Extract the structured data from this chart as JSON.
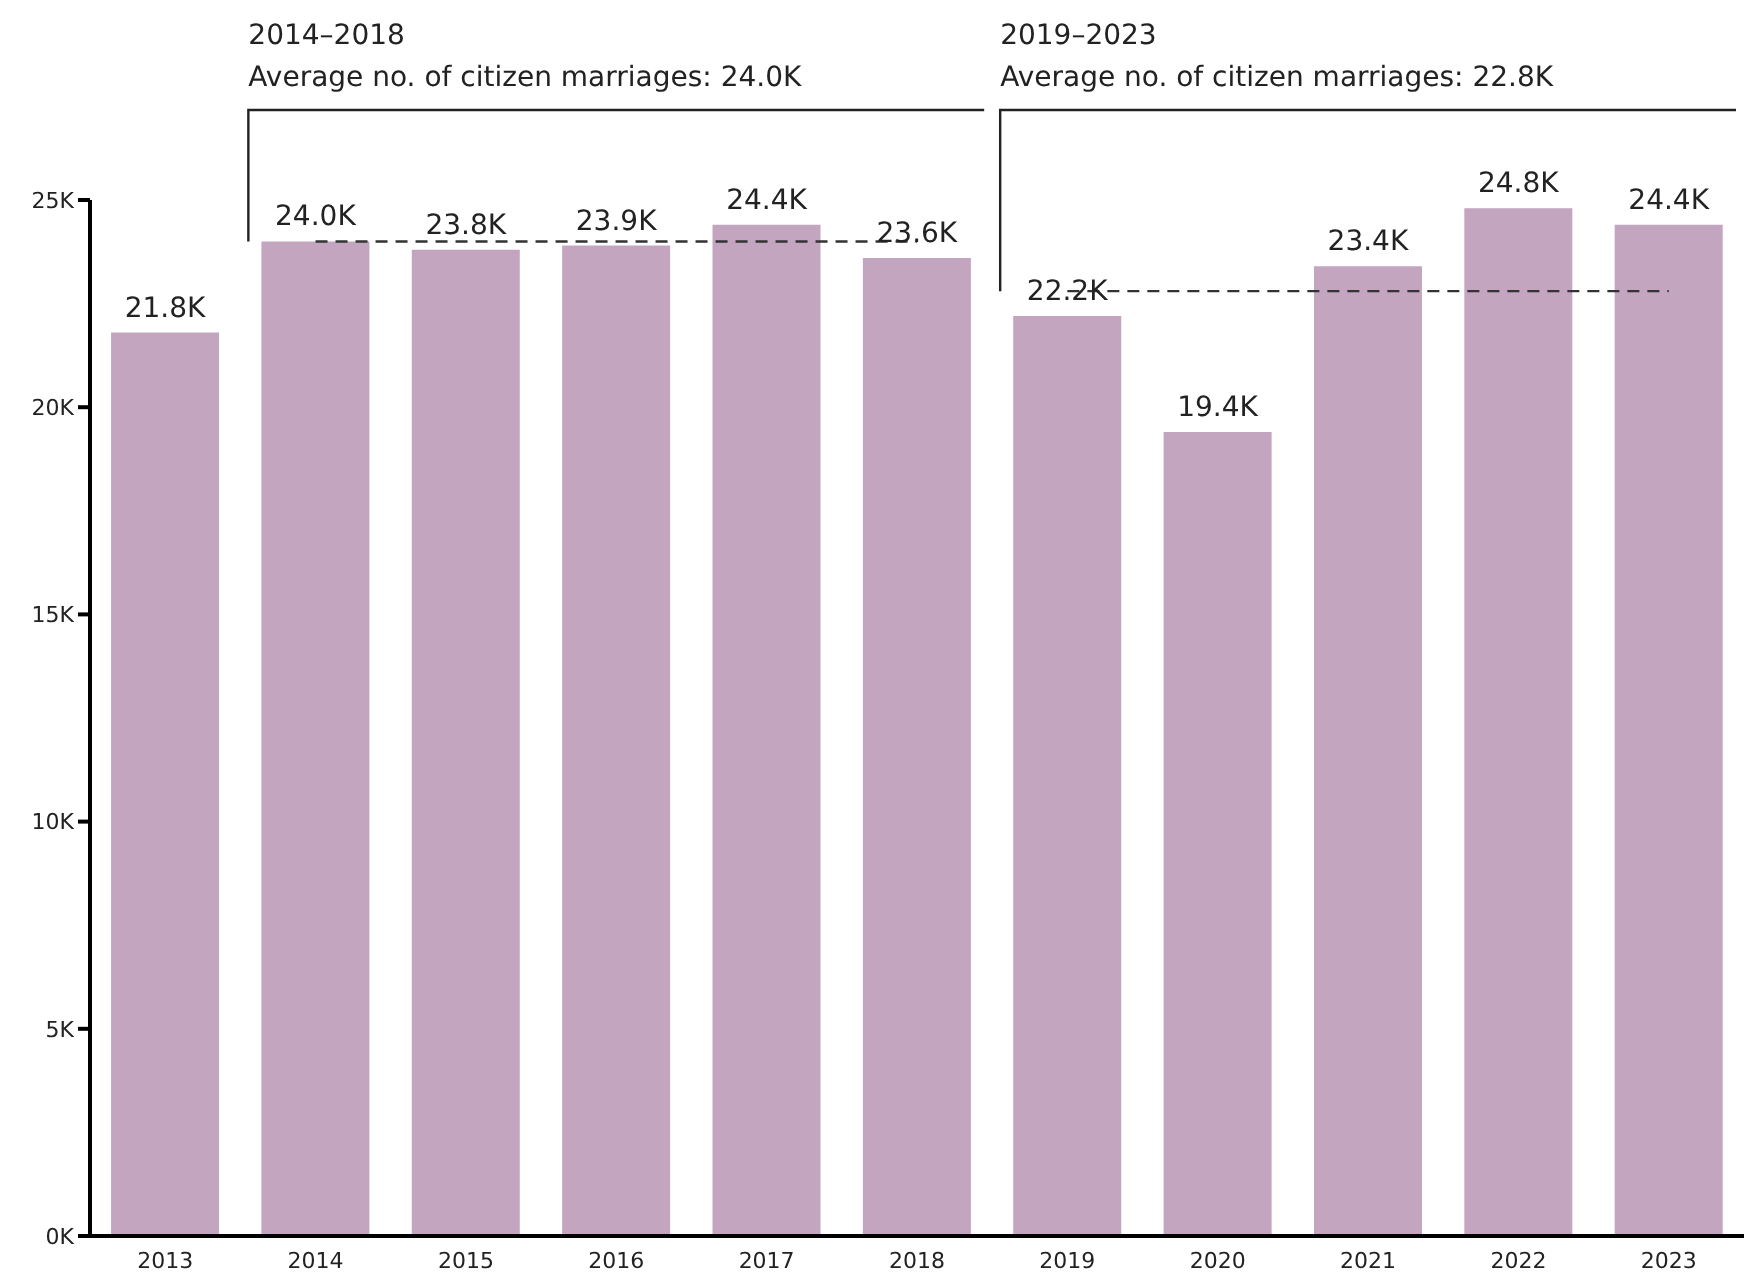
{
  "chart_data": {
    "type": "bar",
    "categories": [
      "2013",
      "2014",
      "2015",
      "2016",
      "2017",
      "2018",
      "2019",
      "2020",
      "2021",
      "2022",
      "2023"
    ],
    "series": [
      {
        "color": "#c3a5bf",
        "values": [
          21.8,
          24.0,
          23.8,
          23.9,
          24.4,
          23.6,
          22.2,
          19.4,
          23.4,
          24.8,
          24.4
        ],
        "value_labels": [
          "21.8K",
          "24.0K",
          "23.8K",
          "23.9K",
          "24.4K",
          "23.6K",
          "22.2K",
          "19.4K",
          "23.4K",
          "24.8K",
          "24.4K"
        ]
      },
      {
        "type": "line",
        "color": "#333333",
        "line_style": "dashed",
        "marker": "none",
        "values": [
          null,
          24.0,
          24.0,
          24.0,
          24.0,
          24.0,
          null,
          null,
          null,
          null,
          null
        ]
      },
      {
        "type": "line",
        "color": "#333333",
        "line_style": "dashed",
        "marker": "none",
        "values": [
          null,
          null,
          null,
          null,
          null,
          null,
          22.8,
          22.8,
          22.8,
          22.8,
          22.8
        ]
      }
    ],
    "ylim": [
      0,
      25
    ],
    "yticks": [
      {
        "value": 0,
        "label": "0K"
      },
      {
        "value": 5,
        "label": "5K"
      },
      {
        "value": 10,
        "label": "10K"
      },
      {
        "value": 15,
        "label": "15K"
      },
      {
        "value": 20,
        "label": "20K"
      },
      {
        "value": 25,
        "label": "25K"
      }
    ],
    "annotations": [
      "2014–2018\nAverage no. of citizen marriages: 24.0K",
      "2019–2023\nAverage no. of citizen marriages: 22.8K"
    ],
    "grid": false,
    "legend": false
  }
}
